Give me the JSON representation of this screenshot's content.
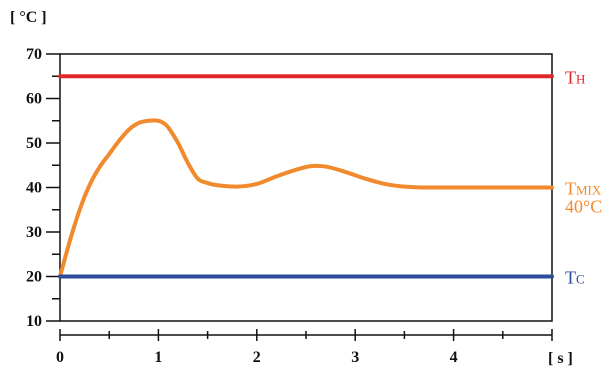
{
  "chart_data": {
    "type": "line",
    "ylabel": "[ °C ]",
    "xlabel": "[ s ]",
    "xlim": [
      0,
      5
    ],
    "ylim": [
      10,
      70
    ],
    "x_ticks": [
      "0",
      "1",
      "2",
      "3",
      "4"
    ],
    "y_ticks": [
      "10",
      "20",
      "30",
      "40",
      "50",
      "60",
      "70"
    ],
    "grid": false,
    "series": [
      {
        "name": "TH",
        "color": "#e0282b",
        "x": [
          0,
          5
        ],
        "y": [
          65,
          65
        ]
      },
      {
        "name": "TMIX",
        "color": "#f08a2c",
        "x": [
          0,
          0.1,
          0.2,
          0.3,
          0.4,
          0.5,
          0.6,
          0.7,
          0.8,
          0.9,
          1.0,
          1.05,
          1.1,
          1.2,
          1.3,
          1.4,
          1.5,
          1.6,
          1.8,
          2.0,
          2.2,
          2.4,
          2.55,
          2.7,
          2.9,
          3.1,
          3.3,
          3.5,
          3.7,
          4.0,
          4.5,
          5.0
        ],
        "y": [
          20,
          28,
          35,
          40.5,
          44.5,
          47.5,
          50.5,
          53,
          54.5,
          55,
          55,
          54.5,
          53.5,
          50,
          45.5,
          42,
          41,
          40.5,
          40.2,
          40.8,
          42.5,
          44,
          44.8,
          44.7,
          43.5,
          42,
          40.8,
          40.2,
          40,
          40,
          40,
          40
        ]
      },
      {
        "name": "TC",
        "color": "#2b4b9b",
        "x": [
          0,
          5
        ],
        "y": [
          20,
          20
        ]
      }
    ],
    "annotations": [
      {
        "series": "TH",
        "main": "T",
        "sub": "H"
      },
      {
        "series": "TMIX",
        "main": "T",
        "sub": "MIX",
        "line2": "40°C"
      },
      {
        "series": "TC",
        "main": "T",
        "sub": "C"
      }
    ]
  }
}
